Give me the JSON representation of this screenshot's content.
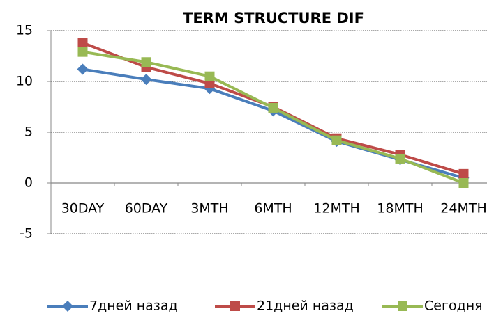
{
  "chart_data": {
    "type": "line",
    "title": "TERM STRUCTURE DIF",
    "categories": [
      "30DAY",
      "60DAY",
      "3MTH",
      "6MTH",
      "12MTH",
      "18MTH",
      "24MTH"
    ],
    "series": [
      {
        "name": "7дней назад",
        "color": "#4a7ebb",
        "marker": "diamond",
        "values": [
          11.2,
          10.2,
          9.3,
          7.1,
          4.1,
          2.3,
          0.5
        ]
      },
      {
        "name": "21дней назад",
        "color": "#be4b48",
        "marker": "square",
        "values": [
          13.8,
          11.4,
          9.8,
          7.5,
          4.4,
          2.8,
          0.9
        ]
      },
      {
        "name": "Сегодня",
        "color": "#98b954",
        "marker": "square",
        "values": [
          12.9,
          11.9,
          10.5,
          7.4,
          4.2,
          2.4,
          0
        ]
      }
    ],
    "ylim": [
      -5,
      15
    ],
    "yticks": [
      -5,
      0,
      5,
      10,
      15
    ],
    "grid": true,
    "legend": "bottom"
  }
}
